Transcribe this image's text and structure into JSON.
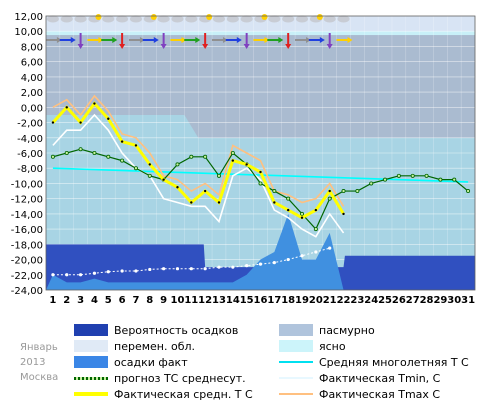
{
  "caption": {
    "month": "Январь",
    "year": "2013",
    "city": "Москва"
  },
  "chart_data": {
    "type": "line",
    "ylim": [
      -24,
      12
    ],
    "yticks": [
      "-24,00",
      "-22,00",
      "-20,00",
      "-18,00",
      "-16,00",
      "-14,00",
      "-12,00",
      "-10,00",
      "-8,00",
      "-6,00",
      "-4,00",
      "-2,00",
      "0,00",
      "2,00",
      "4,00",
      "6,00",
      "8,00",
      "10,00",
      "12,00"
    ],
    "x": [
      "1",
      "2",
      "3",
      "4",
      "5",
      "6",
      "7",
      "8",
      "9",
      "10",
      "11",
      "12",
      "13",
      "14",
      "15",
      "16",
      "17",
      "18",
      "19",
      "20",
      "21",
      "22",
      "23",
      "24",
      "25",
      "26",
      "27",
      "28",
      "29",
      "30",
      "31"
    ],
    "grid": true,
    "series": [
      {
        "name": "Фактическая средн. Т С",
        "color": "#ffff00",
        "x": [
          1,
          2,
          3,
          4,
          5,
          6,
          7,
          8,
          9,
          10,
          11,
          12,
          13,
          14,
          15,
          16,
          17,
          18,
          19,
          20,
          21,
          22
        ],
        "values": [
          -2,
          0,
          -2,
          0.5,
          -1.5,
          -4.5,
          -5,
          -7.5,
          -9.5,
          -10.5,
          -12.5,
          -11,
          -12.5,
          -7,
          -7.5,
          -8.5,
          -12.5,
          -13.5,
          -14.5,
          -13.5,
          -11,
          -14
        ]
      },
      {
        "name": "Фактическая Tmin, С",
        "color": "#ffffff",
        "x": [
          1,
          2,
          3,
          4,
          5,
          6,
          7,
          8,
          9,
          10,
          11,
          12,
          13,
          14,
          15,
          16,
          17,
          18,
          19,
          20,
          21,
          22
        ],
        "values": [
          -5,
          -3,
          -3,
          -1,
          -3,
          -6,
          -8,
          -9,
          -12,
          -12.5,
          -13,
          -13,
          -15,
          -9,
          -8,
          -9.5,
          -13.5,
          -14.5,
          -16,
          -17,
          -14,
          -16.5
        ]
      },
      {
        "name": "Фактическая Tmax С",
        "color": "#ffc080",
        "x": [
          1,
          2,
          3,
          4,
          5,
          6,
          7,
          8,
          9,
          10,
          11,
          12,
          13,
          14,
          15,
          16,
          17,
          18,
          19,
          20,
          21,
          22
        ],
        "values": [
          0,
          1,
          -1,
          1.5,
          -0.5,
          -3.5,
          -4,
          -6,
          -9,
          -9.5,
          -11,
          -10,
          -11.5,
          -5,
          -6,
          -7,
          -11,
          -11.5,
          -12.5,
          -12,
          -10,
          -13
        ]
      },
      {
        "name": "прогноз ТС среднесут.",
        "color": "#006600",
        "x": [
          1,
          2,
          3,
          4,
          5,
          6,
          7,
          8,
          9,
          10,
          11,
          12,
          13,
          14,
          15,
          16,
          17,
          18,
          19,
          20,
          21,
          22,
          23,
          24,
          25,
          26,
          27,
          28,
          29,
          30,
          31
        ],
        "values": [
          -6.5,
          -6,
          -5.5,
          -6,
          -6.5,
          -7,
          -8,
          -9,
          -9.5,
          -7.5,
          -6.5,
          -6.5,
          -9,
          -6,
          -7.5,
          -10,
          -11,
          -12,
          -14,
          -16,
          -12,
          -11,
          -11,
          -10,
          -9.5,
          -9,
          -9,
          -9,
          -9.5,
          -9.5,
          -11
        ]
      },
      {
        "name": "Средняя многолетняя Т С",
        "color": "#00ffff",
        "x": [
          1,
          31
        ],
        "values": [
          -8,
          -9.8
        ]
      },
      {
        "name": "Вероятность осадков",
        "color": "#3050c0",
        "x": [
          1,
          2,
          3,
          4,
          5,
          6,
          7,
          8,
          9,
          10,
          11,
          11.9,
          12,
          13,
          14,
          15,
          16,
          17,
          18,
          19,
          20,
          21,
          22,
          22.1,
          23,
          24,
          25,
          26,
          27,
          28,
          29,
          30,
          31
        ],
        "values": [
          80,
          80,
          80,
          80,
          80,
          80,
          80,
          80,
          80,
          80,
          80,
          80,
          40,
          40,
          40,
          40,
          40,
          40,
          40,
          40,
          40,
          40,
          40,
          60,
          60,
          60,
          60,
          60,
          60,
          60,
          60,
          60,
          60
        ]
      },
      {
        "name": "осадки факт",
        "color": "#4090e0",
        "x": [
          1,
          2,
          3,
          4,
          5,
          6,
          7,
          8,
          9,
          10,
          11,
          12,
          13,
          14,
          15,
          16,
          17,
          18,
          19,
          20,
          21,
          22
        ],
        "values": [
          -22,
          -23,
          -23,
          -22.5,
          -23,
          -23,
          -23,
          -23,
          -23,
          -23,
          -23,
          -23,
          -23,
          -23,
          -22,
          -20,
          -19,
          -14,
          -20,
          -20,
          -16.5,
          -24
        ]
      },
      {
        "name": "snow-depth-markers",
        "color": "#ffffff",
        "x": [
          1,
          2,
          3,
          4,
          5,
          6,
          7,
          8,
          9,
          10,
          11,
          12,
          13,
          14,
          15,
          16,
          17,
          18,
          19,
          20,
          21
        ],
        "values": [
          -22,
          -22,
          -22,
          -21.8,
          -21.6,
          -21.5,
          -21.5,
          -21.3,
          -21.2,
          -21.2,
          -21.2,
          -21.2,
          -21,
          -21,
          -20.8,
          -20.6,
          -20.4,
          -20,
          -19.5,
          -19,
          -18.5
        ]
      }
    ],
    "cloud_bands": {
      "overcast": {
        "name": "пасмурно",
        "color": "#aabbd0"
      },
      "variable": {
        "name": "перемен. обл.",
        "color": "#d8e4f4"
      },
      "clear": {
        "name": "ясно",
        "color": "#c8f0f8"
      }
    }
  },
  "legend": [
    {
      "label": "Вероятность осадков",
      "kind": "box",
      "color": "#2040b0"
    },
    {
      "label": "пасмурно",
      "kind": "box",
      "color": "#b0c4dc"
    },
    {
      "label": "перемен. обл.",
      "kind": "box",
      "color": "#e0eaf6"
    },
    {
      "label": "ясно",
      "kind": "box",
      "color": "#ccf4fa"
    },
    {
      "label": "осадки факт",
      "kind": "box",
      "color": "#3a86e6"
    },
    {
      "label": "Средняя многолетняя Т С",
      "kind": "line",
      "color": "#00e0f0"
    },
    {
      "label": "прогноз ТС среднесут.",
      "kind": "dotted",
      "color": "#006600"
    },
    {
      "label": "Фактическая Tmin, С",
      "kind": "line",
      "color": "#e8f8ff"
    },
    {
      "label": "Фактическая средн. Т С",
      "kind": "thick",
      "color": "#ffff00"
    },
    {
      "label": "Фактическая Tmax С",
      "kind": "line",
      "color": "#ffc080"
    }
  ]
}
